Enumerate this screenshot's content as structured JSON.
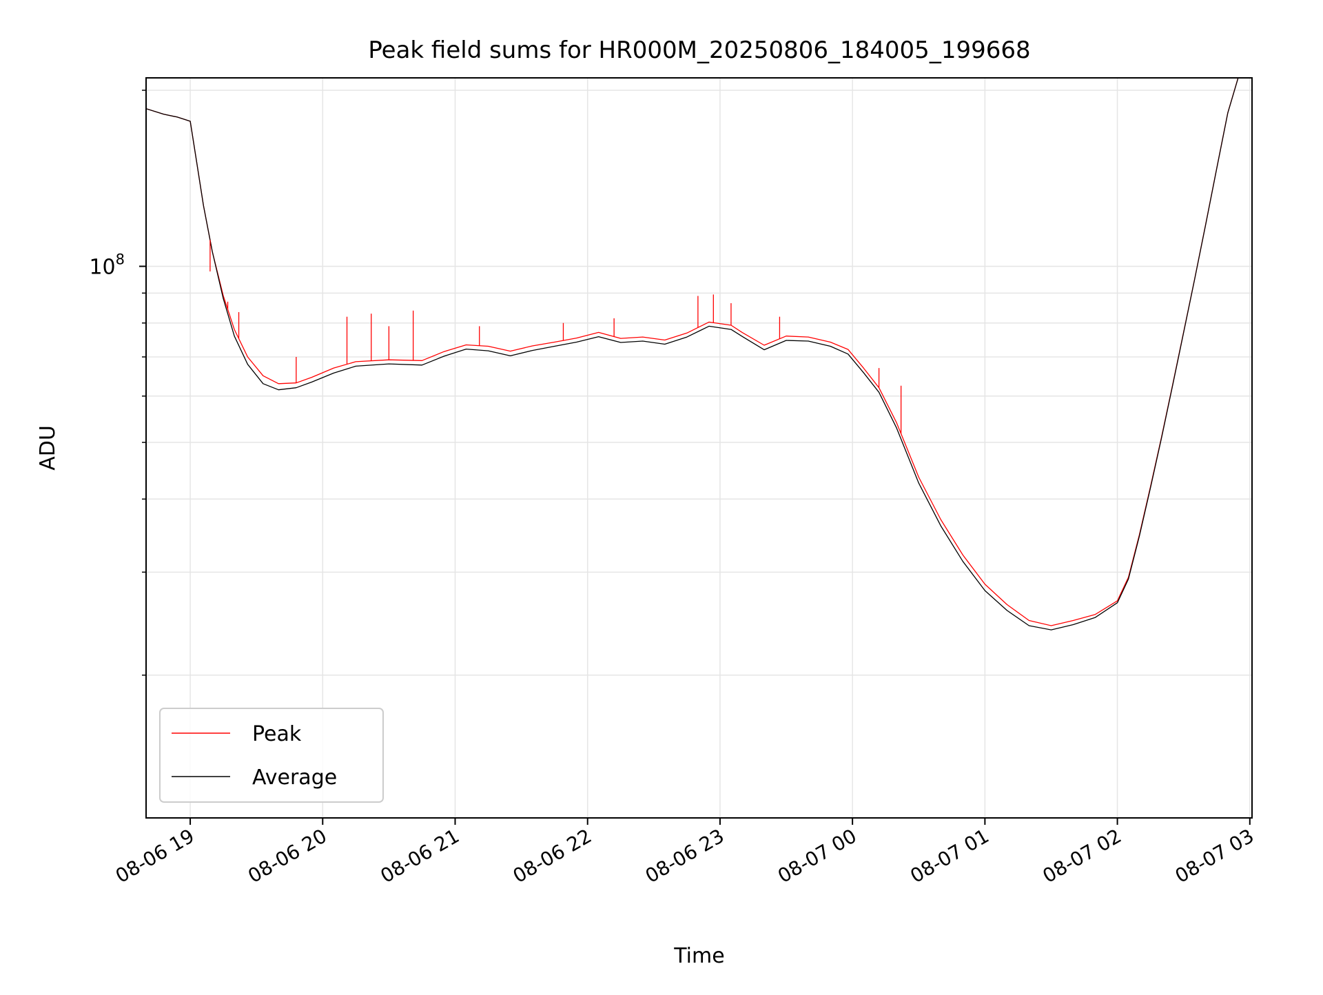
{
  "chart_data": {
    "type": "line",
    "title": "Peak field sums for HR000M_20250806_184005_199668",
    "xlabel": "Time",
    "ylabel": "ADU",
    "y_scale": "log",
    "x_range": [
      "2025-08-06 18:40",
      "2025-08-07 03:01"
    ],
    "ylim": [
      11400000,
      210000000
    ],
    "grid": true,
    "legend_position": "lower-left",
    "x_tick_labels": [
      "08-06 19",
      "08-06 20",
      "08-06 21",
      "08-06 22",
      "08-06 23",
      "08-07 00",
      "08-07 01",
      "08-07 02",
      "08-07 03"
    ],
    "x_ticks": [
      "2025-08-06 19:00",
      "2025-08-06 20:00",
      "2025-08-06 21:00",
      "2025-08-06 22:00",
      "2025-08-06 23:00",
      "2025-08-07 00:00",
      "2025-08-07 01:00",
      "2025-08-07 02:00",
      "2025-08-07 03:00"
    ],
    "y_major_ticks": [
      {
        "value": 100000000,
        "label_base": "10",
        "label_exp": "8"
      }
    ],
    "y_minor_ticks": [
      20000000,
      30000000,
      40000000,
      50000000,
      60000000,
      70000000,
      80000000,
      90000000,
      200000000
    ],
    "series": [
      {
        "name": "Peak",
        "color": "#ff0000",
        "line_width": 1.0,
        "x": [
          "2025-08-06 18:40",
          "2025-08-06 18:48",
          "2025-08-06 18:54",
          "2025-08-06 18:58",
          "2025-08-06 19:00",
          "2025-08-06 19:03",
          "2025-08-06 19:06",
          "2025-08-06 19:10",
          "2025-08-06 19:15",
          "2025-08-06 19:20",
          "2025-08-06 19:26",
          "2025-08-06 19:33",
          "2025-08-06 19:40",
          "2025-08-06 19:48",
          "2025-08-06 19:55",
          "2025-08-06 20:05",
          "2025-08-06 20:15",
          "2025-08-06 20:30",
          "2025-08-06 20:45",
          "2025-08-06 20:55",
          "2025-08-06 21:05",
          "2025-08-06 21:15",
          "2025-08-06 21:25",
          "2025-08-06 21:35",
          "2025-08-06 21:45",
          "2025-08-06 21:55",
          "2025-08-06 22:05",
          "2025-08-06 22:15",
          "2025-08-06 22:25",
          "2025-08-06 22:35",
          "2025-08-06 22:45",
          "2025-08-06 22:55",
          "2025-08-06 23:05",
          "2025-08-06 23:10",
          "2025-08-06 23:20",
          "2025-08-06 23:30",
          "2025-08-06 23:40",
          "2025-08-06 23:50",
          "2025-08-06 23:58",
          "2025-08-07 00:05",
          "2025-08-07 00:12",
          "2025-08-07 00:20",
          "2025-08-07 00:30",
          "2025-08-07 00:40",
          "2025-08-07 00:50",
          "2025-08-07 01:00",
          "2025-08-07 01:10",
          "2025-08-07 01:20",
          "2025-08-07 01:30",
          "2025-08-07 01:40",
          "2025-08-07 01:50",
          "2025-08-07 02:00",
          "2025-08-07 02:05",
          "2025-08-07 02:10",
          "2025-08-07 02:15",
          "2025-08-07 02:20",
          "2025-08-07 02:25",
          "2025-08-07 02:30",
          "2025-08-07 02:35",
          "2025-08-07 02:40",
          "2025-08-07 02:45",
          "2025-08-07 02:50",
          "2025-08-07 02:55",
          "2025-08-07 03:00"
        ],
        "y": [
          186000000,
          182000000,
          180000000,
          178000000,
          177000000,
          150000000,
          127000000,
          106000000,
          89000000,
          78000000,
          70000000,
          65000000,
          63000000,
          63200000,
          64600000,
          67000000,
          68700000,
          69200000,
          69000000,
          71500000,
          73400000,
          73000000,
          71600000,
          73100000,
          74200000,
          75400000,
          77100000,
          75300000,
          75700000,
          74800000,
          76900000,
          80300000,
          79300000,
          77100000,
          73300000,
          76000000,
          75700000,
          74200000,
          72100000,
          67000000,
          62000000,
          54000000,
          43600000,
          36900000,
          32100000,
          28600000,
          26400000,
          24800000,
          24300000,
          24800000,
          25400000,
          26800000,
          29400000,
          34800000,
          42000000,
          51100000,
          62700000,
          77200000,
          95100000,
          118000000,
          147000000,
          183000000,
          212000000,
          215000000
        ]
      },
      {
        "name": "Average",
        "color": "#000000",
        "line_width": 1.0,
        "x": [
          "2025-08-06 18:40",
          "2025-08-06 18:48",
          "2025-08-06 18:54",
          "2025-08-06 18:58",
          "2025-08-06 19:00",
          "2025-08-06 19:03",
          "2025-08-06 19:06",
          "2025-08-06 19:10",
          "2025-08-06 19:15",
          "2025-08-06 19:20",
          "2025-08-06 19:26",
          "2025-08-06 19:33",
          "2025-08-06 19:40",
          "2025-08-06 19:48",
          "2025-08-06 19:55",
          "2025-08-06 20:05",
          "2025-08-06 20:15",
          "2025-08-06 20:30",
          "2025-08-06 20:45",
          "2025-08-06 20:55",
          "2025-08-06 21:05",
          "2025-08-06 21:15",
          "2025-08-06 21:25",
          "2025-08-06 21:35",
          "2025-08-06 21:45",
          "2025-08-06 21:55",
          "2025-08-06 22:05",
          "2025-08-06 22:15",
          "2025-08-06 22:25",
          "2025-08-06 22:35",
          "2025-08-06 22:45",
          "2025-08-06 22:55",
          "2025-08-06 23:05",
          "2025-08-06 23:10",
          "2025-08-06 23:20",
          "2025-08-06 23:30",
          "2025-08-06 23:40",
          "2025-08-06 23:50",
          "2025-08-06 23:58",
          "2025-08-07 00:05",
          "2025-08-07 00:12",
          "2025-08-07 00:20",
          "2025-08-07 00:30",
          "2025-08-07 00:40",
          "2025-08-07 00:50",
          "2025-08-07 01:00",
          "2025-08-07 01:10",
          "2025-08-07 01:20",
          "2025-08-07 01:30",
          "2025-08-07 01:40",
          "2025-08-07 01:50",
          "2025-08-07 02:00",
          "2025-08-07 02:05",
          "2025-08-07 02:10",
          "2025-08-07 02:15",
          "2025-08-07 02:20",
          "2025-08-07 02:25",
          "2025-08-07 02:30",
          "2025-08-07 02:35",
          "2025-08-07 02:40",
          "2025-08-07 02:45",
          "2025-08-07 02:50",
          "2025-08-07 02:55",
          "2025-08-07 03:00"
        ],
        "y": [
          186000000,
          182000000,
          180000000,
          178000000,
          177000000,
          150000000,
          127000000,
          106000000,
          88000000,
          76000000,
          68000000,
          63000000,
          61500000,
          62000000,
          63400000,
          65700000,
          67500000,
          68100000,
          67800000,
          70200000,
          72200000,
          71700000,
          70300000,
          71800000,
          73000000,
          74200000,
          75800000,
          74100000,
          74500000,
          73600000,
          75700000,
          79000000,
          78000000,
          75900000,
          72000000,
          74700000,
          74500000,
          73000000,
          70800000,
          65800000,
          60900000,
          52900000,
          42600000,
          36000000,
          31300000,
          27900000,
          25800000,
          24300000,
          23900000,
          24400000,
          25100000,
          26600000,
          29200000,
          34600000,
          41800000,
          50900000,
          62500000,
          77000000,
          95000000,
          117800000,
          146800000,
          182800000,
          211800000,
          215000000
        ]
      }
    ],
    "spikes": [
      {
        "series": "Peak",
        "x": "2025-08-06 19:09",
        "y": 98000000
      },
      {
        "series": "Peak",
        "x": "2025-08-06 19:17",
        "y": 87000000
      },
      {
        "series": "Peak",
        "x": "2025-08-06 19:22",
        "y": 83500000
      },
      {
        "series": "Peak",
        "x": "2025-08-06 19:48",
        "y": 70000000
      },
      {
        "series": "Peak",
        "x": "2025-08-06 20:11",
        "y": 82000000
      },
      {
        "series": "Peak",
        "x": "2025-08-06 20:22",
        "y": 83000000
      },
      {
        "series": "Peak",
        "x": "2025-08-06 20:30",
        "y": 79000000
      },
      {
        "series": "Peak",
        "x": "2025-08-06 20:41",
        "y": 84000000
      },
      {
        "series": "Peak",
        "x": "2025-08-06 21:11",
        "y": 79000000
      },
      {
        "series": "Peak",
        "x": "2025-08-06 21:49",
        "y": 80000000
      },
      {
        "series": "Peak",
        "x": "2025-08-06 22:12",
        "y": 81500000
      },
      {
        "series": "Peak",
        "x": "2025-08-06 22:50",
        "y": 89000000
      },
      {
        "series": "Peak",
        "x": "2025-08-06 22:57",
        "y": 89500000
      },
      {
        "series": "Peak",
        "x": "2025-08-06 23:05",
        "y": 86500000
      },
      {
        "series": "Peak",
        "x": "2025-08-06 23:27",
        "y": 82000000
      },
      {
        "series": "Peak",
        "x": "2025-08-07 00:12",
        "y": 67000000
      },
      {
        "series": "Peak",
        "x": "2025-08-07 00:22",
        "y": 62500000
      }
    ]
  },
  "legend": {
    "items": [
      {
        "label": "Peak",
        "color": "#ff0000"
      },
      {
        "label": "Average",
        "color": "#000000"
      }
    ]
  }
}
